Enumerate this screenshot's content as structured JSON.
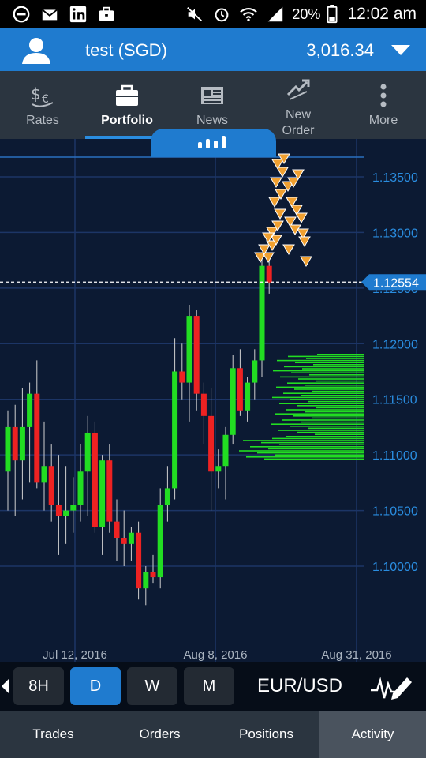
{
  "status_bar": {
    "battery": "20%",
    "time": "12:02 am",
    "left_icons": [
      "minus-circle-icon",
      "mail-icon",
      "linkedin-icon",
      "briefcase-icon"
    ],
    "right_icons": [
      "mute-icon",
      "alarm-icon",
      "wifi-icon",
      "signal-icon",
      "battery-icon"
    ]
  },
  "account": {
    "name": "test (SGD)",
    "balance": "3,016.34"
  },
  "nav": {
    "tabs": [
      {
        "label": "Rates",
        "icon": "rates-icon"
      },
      {
        "label": "Portfolio",
        "icon": "briefcase-icon",
        "active": true
      },
      {
        "label": "News",
        "icon": "news-icon"
      },
      {
        "label": "New\nOrder",
        "icon": "new-order-icon"
      },
      {
        "label": "More",
        "icon": "more-vertical-icon"
      }
    ]
  },
  "chart": {
    "current_price": "1.12554",
    "y_ticks": [
      "1.13500",
      "1.13000",
      "1.12500",
      "1.12000",
      "1.11500",
      "1.11000",
      "1.10500",
      "1.10000"
    ],
    "x_ticks": [
      "Jul 12, 2016",
      "Aug 8, 2016",
      "Aug 31, 2016"
    ],
    "colors": {
      "up": "#22dd22",
      "down": "#ee2222",
      "background": "#0c1a33",
      "grid": "#1c3566",
      "axis_text": "#2a8de0"
    }
  },
  "chart_data": {
    "type": "candlestick",
    "symbol": "EUR/USD",
    "timeframe": "D",
    "ylim": [
      1.095,
      1.137
    ],
    "current_price": 1.12554,
    "candles": [
      {
        "o": 1.1085,
        "h": 1.114,
        "l": 1.105,
        "c": 1.1125
      },
      {
        "o": 1.1125,
        "h": 1.1145,
        "l": 1.1045,
        "c": 1.1095
      },
      {
        "o": 1.1095,
        "h": 1.116,
        "l": 1.106,
        "c": 1.1125
      },
      {
        "o": 1.1125,
        "h": 1.1165,
        "l": 1.1075,
        "c": 1.1155
      },
      {
        "o": 1.1155,
        "h": 1.1185,
        "l": 1.107,
        "c": 1.1075
      },
      {
        "o": 1.1075,
        "h": 1.113,
        "l": 1.105,
        "c": 1.109
      },
      {
        "o": 1.109,
        "h": 1.111,
        "l": 1.104,
        "c": 1.1055
      },
      {
        "o": 1.1055,
        "h": 1.11,
        "l": 1.101,
        "c": 1.1045
      },
      {
        "o": 1.1045,
        "h": 1.109,
        "l": 1.102,
        "c": 1.105
      },
      {
        "o": 1.105,
        "h": 1.108,
        "l": 1.103,
        "c": 1.1055
      },
      {
        "o": 1.1055,
        "h": 1.111,
        "l": 1.104,
        "c": 1.1085
      },
      {
        "o": 1.1085,
        "h": 1.1135,
        "l": 1.1045,
        "c": 1.112
      },
      {
        "o": 1.112,
        "h": 1.113,
        "l": 1.103,
        "c": 1.1035
      },
      {
        "o": 1.1035,
        "h": 1.11,
        "l": 1.101,
        "c": 1.1095
      },
      {
        "o": 1.1095,
        "h": 1.111,
        "l": 1.103,
        "c": 1.104
      },
      {
        "o": 1.104,
        "h": 1.106,
        "l": 1.1005,
        "c": 1.1025
      },
      {
        "o": 1.1025,
        "h": 1.105,
        "l": 1.1,
        "c": 1.102
      },
      {
        "o": 1.102,
        "h": 1.1035,
        "l": 1.1005,
        "c": 1.103
      },
      {
        "o": 1.103,
        "h": 1.104,
        "l": 1.097,
        "c": 1.098
      },
      {
        "o": 1.098,
        "h": 1.1,
        "l": 1.0965,
        "c": 1.0995
      },
      {
        "o": 1.0995,
        "h": 1.101,
        "l": 1.0985,
        "c": 1.099
      },
      {
        "o": 1.099,
        "h": 1.107,
        "l": 1.098,
        "c": 1.1055
      },
      {
        "o": 1.1055,
        "h": 1.109,
        "l": 1.104,
        "c": 1.107
      },
      {
        "o": 1.107,
        "h": 1.1205,
        "l": 1.106,
        "c": 1.1175
      },
      {
        "o": 1.1175,
        "h": 1.12,
        "l": 1.115,
        "c": 1.1165
      },
      {
        "o": 1.1165,
        "h": 1.1235,
        "l": 1.113,
        "c": 1.1225
      },
      {
        "o": 1.1225,
        "h": 1.123,
        "l": 1.114,
        "c": 1.1155
      },
      {
        "o": 1.1155,
        "h": 1.1165,
        "l": 1.111,
        "c": 1.1135
      },
      {
        "o": 1.1135,
        "h": 1.116,
        "l": 1.105,
        "c": 1.1085
      },
      {
        "o": 1.1085,
        "h": 1.1105,
        "l": 1.107,
        "c": 1.109
      },
      {
        "o": 1.109,
        "h": 1.1125,
        "l": 1.106,
        "c": 1.1118
      },
      {
        "o": 1.1118,
        "h": 1.119,
        "l": 1.111,
        "c": 1.1178
      },
      {
        "o": 1.1178,
        "h": 1.1195,
        "l": 1.1135,
        "c": 1.114
      },
      {
        "o": 1.114,
        "h": 1.117,
        "l": 1.113,
        "c": 1.1165
      },
      {
        "o": 1.1165,
        "h": 1.1195,
        "l": 1.115,
        "c": 1.1185
      },
      {
        "o": 1.1185,
        "h": 1.128,
        "l": 1.117,
        "c": 1.127
      },
      {
        "o": 1.127,
        "h": 1.1275,
        "l": 1.1245,
        "c": 1.1255
      }
    ]
  },
  "timeframes": {
    "buttons": [
      {
        "label": "8H"
      },
      {
        "label": "D",
        "active": true
      },
      {
        "label": "W"
      },
      {
        "label": "M"
      }
    ],
    "pair": "EUR/USD"
  },
  "bottom_tabs": [
    {
      "label": "Trades"
    },
    {
      "label": "Orders"
    },
    {
      "label": "Positions"
    },
    {
      "label": "Activity",
      "active": true
    }
  ]
}
